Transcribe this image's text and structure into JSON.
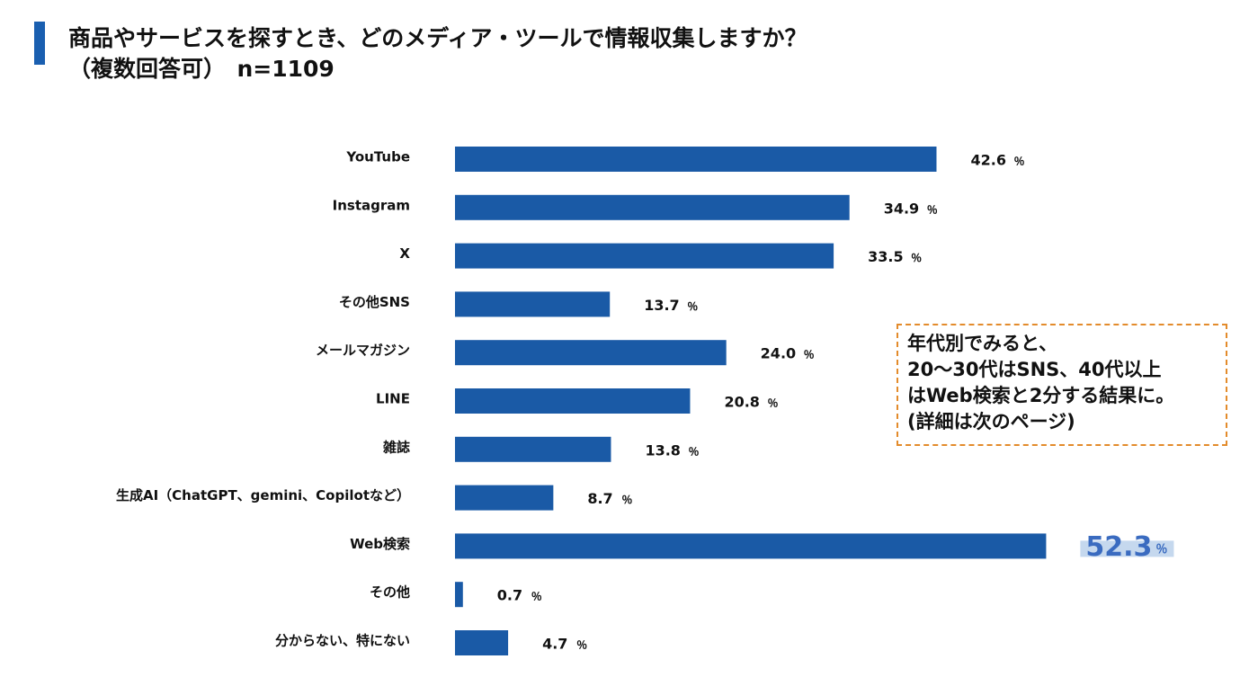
{
  "title": {
    "line1": "商品やサービスを探すとき、どのメディア・ツールで情報収集しますか？",
    "line2": "（複数回答可）　n=1109"
  },
  "note": {
    "lines": [
      "年代別でみると、",
      "20～30代はSNS、40代以上",
      "はWeb検索と2分する結果に。",
      "(詳細は次のページ)"
    ]
  },
  "colors": {
    "bar": "#1a5aa6",
    "accent": "#1a5fb0",
    "highlight_text": "#3a6bc0",
    "highlight_bg": "#c5d8ee",
    "note_border": "#e38b2b"
  },
  "chart_data": {
    "type": "bar",
    "orientation": "horizontal",
    "categories": [
      "YouTube",
      "Instagram",
      "X",
      "その他SNS",
      "メールマガジン",
      "LINE",
      "雑誌",
      "生成AI（ChatGPT、gemini、Copilotなど）",
      "Web検索",
      "その他",
      "分からない、特にない"
    ],
    "values": [
      42.6,
      34.9,
      33.5,
      13.7,
      24.0,
      20.8,
      13.8,
      8.7,
      52.3,
      0.7,
      4.7
    ],
    "value_labels": [
      "42.6",
      "34.9",
      "33.5",
      "13.7",
      "24.0",
      "20.8",
      "13.8",
      "8.7",
      "52.3",
      "0.7",
      "4.7"
    ],
    "unit": "％",
    "highlight_index": 8,
    "xlim": [
      0,
      55
    ],
    "grid": false,
    "legend": "none"
  }
}
